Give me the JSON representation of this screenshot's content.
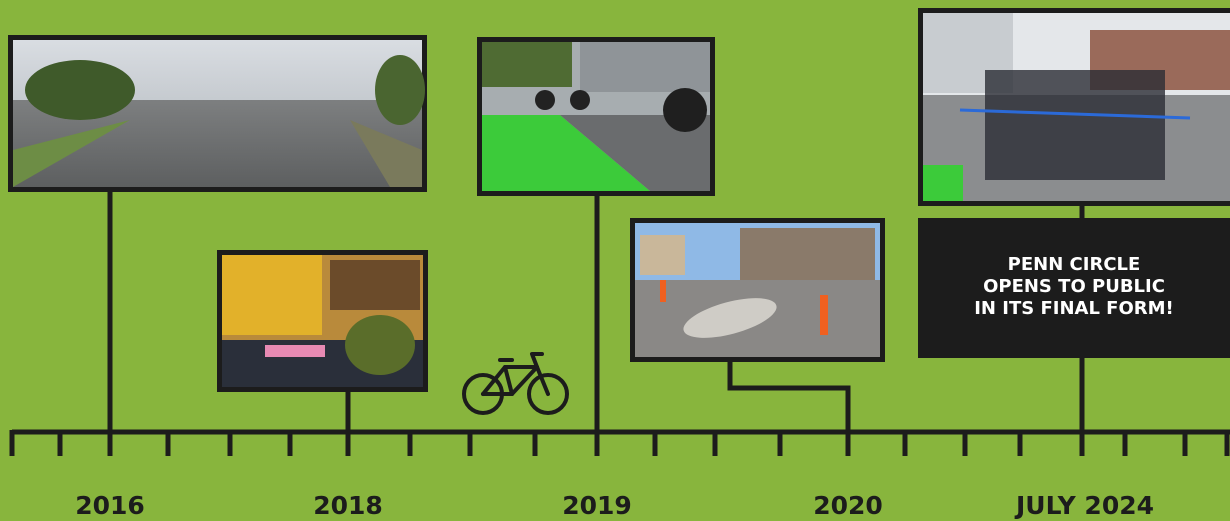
{
  "timeline": {
    "labels": [
      "2016",
      "2018",
      "2019",
      "2020",
      "JULY 2024"
    ],
    "callout": {
      "lines": [
        "PENN CIRCLE",
        "OPENS TO PUBLIC",
        "IN ITS FINAL FORM!"
      ]
    }
  }
}
